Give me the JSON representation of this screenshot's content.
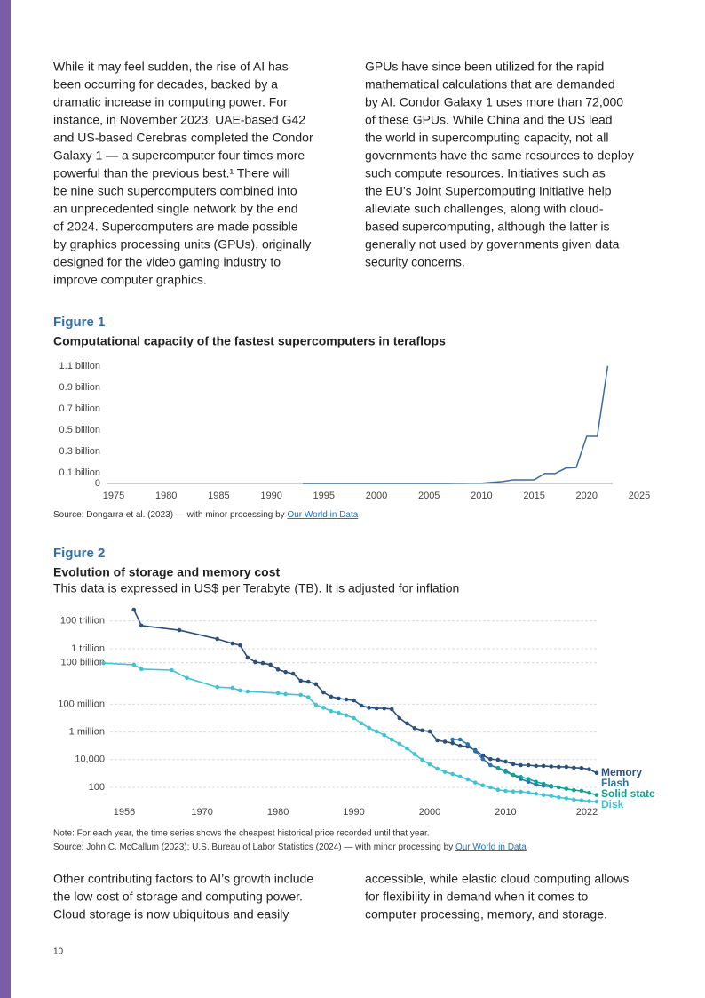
{
  "body": {
    "top_left": [
      "While it may feel sudden, the rise of AI has",
      "been occurring for decades, backed by a",
      "dramatic increase in computing power. For",
      "instance, in November 2023, UAE-based G42",
      "and US-based Cerebras completed the Condor",
      "Galaxy 1 — a supercomputer four times more",
      "powerful than the previous best.¹ There will",
      "be nine such supercomputers combined into",
      "an unprecedented single network by the end",
      "of 2024. Supercomputers are made possible",
      "by graphics processing units (GPUs), originally",
      "designed for the video gaming industry to",
      "improve computer graphics."
    ],
    "top_right": [
      "GPUs have since been utilized for the rapid",
      "mathematical calculations that are demanded",
      "by AI. Condor Galaxy 1 uses more than 72,000",
      "of these GPUs. While China and the US lead",
      "the world in supercomputing capacity, not all",
      "governments have the same resources to deploy",
      "such compute resources. Initiatives such as",
      "the EU’s Joint Supercomputing Initiative help",
      "alleviate such challenges, along with cloud-",
      "based supercomputing, although the latter is",
      "generally not used by governments given data",
      "security concerns."
    ],
    "bottom_left": [
      "Other contributing factors to AI’s growth include",
      "the low cost of storage and computing power.",
      "Cloud storage is now ubiquitous and easily"
    ],
    "bottom_right": [
      "accessible, while elastic cloud computing allows",
      "for flexibility in demand when it comes to",
      "computer processing, memory, and storage."
    ]
  },
  "page_number": "10",
  "chart_data": [
    {
      "type": "line",
      "figure_label": "Figure 1",
      "title": "Computational capacity of the fastest supercomputers in teraflops",
      "x": [
        1993,
        1994,
        1995,
        1996,
        1997,
        1998,
        1999,
        2000,
        2001,
        2002,
        2003,
        2004,
        2005,
        2006,
        2007,
        2008,
        2009,
        2010,
        2011,
        2012,
        2013,
        2014,
        2015,
        2016,
        2017,
        2018,
        2019,
        2020,
        2021,
        2022
      ],
      "values": [
        59.7,
        170.4,
        170.4,
        368.2,
        1338,
        1338,
        2379,
        4938,
        7226,
        35860,
        35860,
        70720,
        280600,
        280600,
        478200,
        1105000,
        1759000,
        2566000,
        10510000,
        17590000,
        33860000,
        33860000,
        33860000,
        93010000,
        93010000,
        143500000,
        148600000,
        442010000,
        442010000,
        1102000000
      ],
      "color": "#3b6b9c",
      "grid": false,
      "xlim": [
        1975,
        2025
      ],
      "xticks": [
        1975,
        1980,
        1985,
        1990,
        1995,
        2000,
        2005,
        2010,
        2015,
        2020,
        2025
      ],
      "ylim": [
        0,
        1100000000
      ],
      "yticks": [
        0,
        {
          "value": 100000000,
          "label": "0.1 billion"
        },
        {
          "value": 300000000,
          "label": "0.3 billion"
        },
        {
          "value": 500000000,
          "label": "0.5 billion"
        },
        {
          "value": 700000000,
          "label": "0.7 billion"
        },
        {
          "value": 900000000,
          "label": "0.9 billion"
        },
        {
          "value": 1100000000,
          "label": "1.1 billion"
        }
      ],
      "source": "Source: Dongarra et al. (2023) — with minor processing by ",
      "source_link": "Our World in Data"
    },
    {
      "type": "line",
      "figure_label": "Figure 2",
      "title": "Evolution of storage and memory cost",
      "subtitle": "This data is expressed in US$ per Terabyte (TB). It is adjusted for inflation",
      "yscale": "log",
      "grid": true,
      "markers": true,
      "xlim": [
        1956,
        2022
      ],
      "xticks": [
        1956,
        1970,
        1980,
        1990,
        2000,
        2010,
        2022
      ],
      "ylim": [
        5,
        1000000000000000.0
      ],
      "yticks": [
        100,
        {
          "value": 10000,
          "label": "10,000"
        },
        {
          "value": 1000000,
          "label": "1 million"
        },
        {
          "value": 100000000,
          "label": "100 million"
        },
        {
          "value": 100000000000,
          "label": "100 billion"
        },
        {
          "value": 1000000000000,
          "label": "1 trillion"
        },
        {
          "value": 100000000000000,
          "label": "100 trillion"
        }
      ],
      "series": [
        {
          "name": "Memory",
          "color": "#2c4f7c",
          "x": [
            1961,
            1962,
            1967,
            1972,
            1974,
            1975,
            1976,
            1977,
            1978,
            1979,
            1980,
            1981,
            1982,
            1983,
            1984,
            1985,
            1986,
            1987,
            1988,
            1989,
            1990,
            1991,
            1992,
            1993,
            1994,
            1995,
            1996,
            1997,
            1998,
            1999,
            2000,
            2001,
            2002,
            2003,
            2004,
            2005,
            2006,
            2007,
            2008,
            2009,
            2010,
            2011,
            2012,
            2013,
            2014,
            2015,
            2016,
            2017,
            2018,
            2019,
            2020,
            2021,
            2022
          ],
          "values": [
            660000000000000.0,
            47000000000000.0,
            22000000000000.0,
            5100000000000.0,
            2400000000000.0,
            1800000000000.0,
            230000000000.0,
            110000000000.0,
            93000000000.0,
            71000000000.0,
            32000000000.0,
            21000000000.0,
            16000000000.0,
            4900000000.0,
            4200000000.0,
            2800000000.0,
            720000000.0,
            350000000.0,
            260000000.0,
            220000000.0,
            190000000.0,
            79000000.0,
            56000000.0,
            50000000.0,
            50000000.0,
            44000000.0,
            10000000.0,
            4200000.0,
            1900000.0,
            1300000.0,
            1100000.0,
            250000,
            200000,
            160000,
            100000,
            89000,
            49000,
            20000,
            11000,
            9800,
            7200,
            4700,
            4000,
            4000,
            3500,
            3500,
            3200,
            3000,
            3000,
            2600,
            2500,
            2000,
            1100
          ]
        },
        {
          "name": "Flash",
          "color": "#2a73ad",
          "x": [
            2003,
            2004,
            2005,
            2006,
            2007,
            2008,
            2009,
            2010,
            2011,
            2012,
            2013,
            2014,
            2015,
            2016
          ],
          "values": [
            290000,
            290000,
            130000,
            40000,
            11000,
            4000,
            2500,
            1600,
            790,
            400,
            250,
            160,
            130,
            110
          ]
        },
        {
          "name": "Solid state",
          "color": "#12a08f",
          "x": [
            2009,
            2010,
            2011,
            2012,
            2013,
            2014,
            2015,
            2016,
            2017,
            2018,
            2019,
            2020,
            2021,
            2022
          ],
          "values": [
            2500,
            1300,
            790,
            560,
            400,
            250,
            180,
            130,
            100,
            79,
            63,
            56,
            40,
            28
          ]
        },
        {
          "name": "Disk",
          "color": "#3ec4d6",
          "x": [
            1957,
            1961,
            1962,
            1966,
            1968,
            1972,
            1974,
            1975,
            1976,
            1980,
            1981,
            1983,
            1984,
            1985,
            1986,
            1987,
            1988,
            1989,
            1990,
            1991,
            1992,
            1993,
            1994,
            1995,
            1996,
            1997,
            1998,
            1999,
            2000,
            2001,
            2002,
            2003,
            2004,
            2005,
            2006,
            2007,
            2008,
            2009,
            2010,
            2011,
            2012,
            2013,
            2014,
            2015,
            2016,
            2017,
            2018,
            2019,
            2020,
            2021,
            2022
          ],
          "values": [
            93000000000.0,
            71000000000.0,
            34000000000.0,
            29000000000.0,
            7900000000.0,
            1700000000.0,
            1500000000.0,
            980000000.0,
            830000000.0,
            630000000.0,
            540000000.0,
            470000000.0,
            320000000.0,
            91000000.0,
            56000000.0,
            32000000.0,
            24000000.0,
            16000000.0,
            10000000.0,
            4200000.0,
            2000000.0,
            1100000.0,
            600000,
            280000,
            140000,
            66000,
            25000,
            9800,
            4500,
            2200,
            1300,
            910,
            600,
            380,
            220,
            140,
            100,
            66,
            55,
            50,
            48,
            42,
            35,
            28,
            24,
            19,
            16,
            13,
            11.5,
            10,
            9.3
          ]
        }
      ],
      "note": "Note: For each year, the time series shows the cheapest historical price recorded until that year.",
      "source": "Source: John C. McCallum (2023); U.S. Bureau of Labor Statistics (2024) — with minor processing by ",
      "source_link": "Our World in Data"
    }
  ]
}
